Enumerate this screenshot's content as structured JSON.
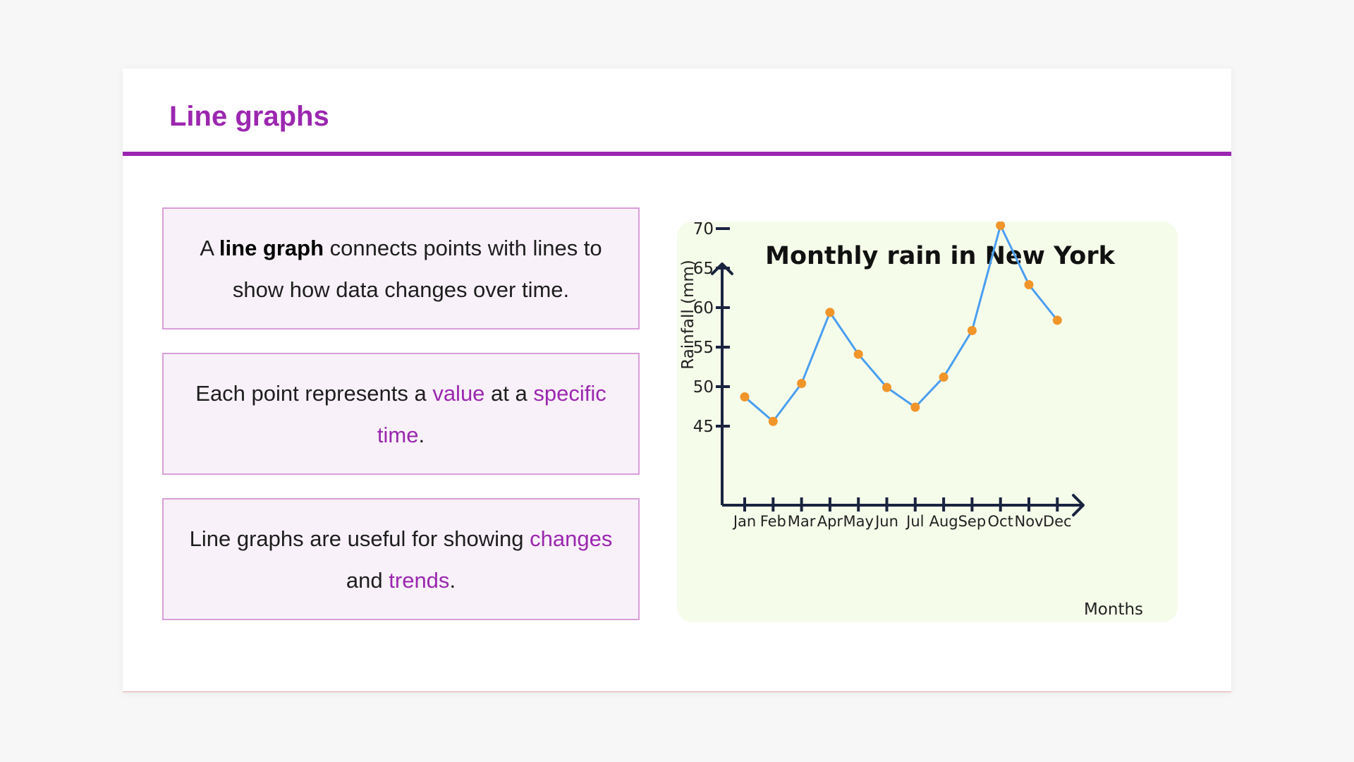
{
  "slide": {
    "title": "Line graphs",
    "cards": [
      {
        "parts": [
          "A ",
          "line graph",
          " connects points with lines to show how data changes over time."
        ]
      },
      {
        "parts": [
          "Each point represents a ",
          "value",
          " at a ",
          "specific time",
          "."
        ]
      },
      {
        "parts": [
          "Line graphs are useful for showing ",
          "changes",
          " and ",
          "trends",
          "."
        ]
      }
    ]
  },
  "colors": {
    "accent": "#9b27b0",
    "card_bg": "#f8f1f9",
    "card_border": "#d99ed9",
    "chart_bg": "#f6fcea",
    "line": "#4a9ff0",
    "marker": "#f0952a",
    "axis": "#1a2440"
  },
  "chart_data": {
    "type": "line",
    "title": "Monthly rain in New York",
    "xlabel": "Months",
    "ylabel": "Rainfall (mm)",
    "categories": [
      "Jan",
      "Feb",
      "Mar",
      "Apr",
      "May",
      "Jun",
      "Jul",
      "Aug",
      "Sep",
      "Oct",
      "Nov",
      "Dec"
    ],
    "series": [
      {
        "values": [
          48.7,
          45.6,
          50.4,
          59.4,
          54.1,
          49.9,
          47.4,
          51.2,
          57.1,
          70.4,
          62.9,
          58.4
        ]
      }
    ],
    "yticks": [
      45,
      50,
      55,
      60,
      65,
      70
    ],
    "ylim": [
      35,
      75
    ],
    "grid": false,
    "legend": "none"
  }
}
